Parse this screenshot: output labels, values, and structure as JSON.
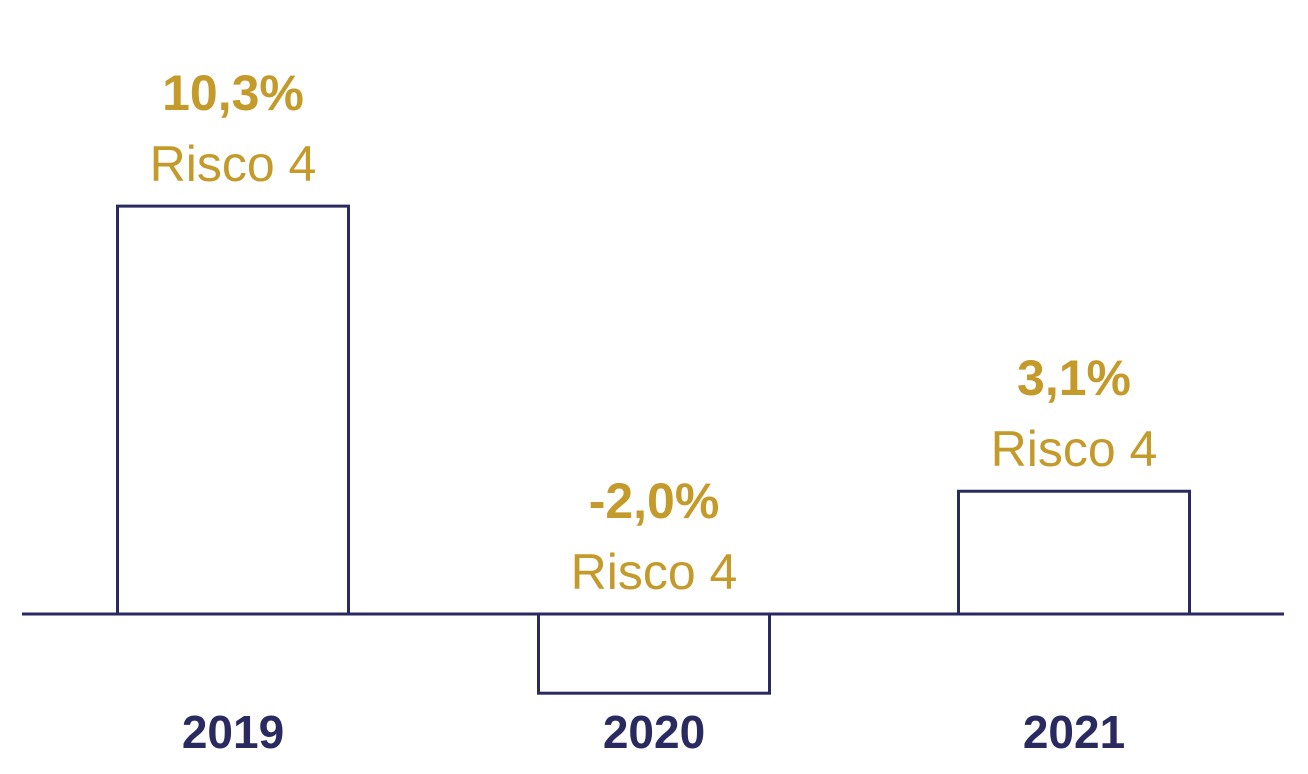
{
  "colors": {
    "bar_stroke": "#2b2a60",
    "label": "#c49a2a",
    "axis_text": "#2b2a60",
    "background": "#ffffff"
  },
  "chart_data": {
    "type": "bar",
    "title": "",
    "xlabel": "",
    "ylabel": "",
    "categories": [
      "2019",
      "2020",
      "2021"
    ],
    "values": [
      10.3,
      -2.0,
      3.1
    ],
    "value_labels": [
      "10,3%",
      "-2,0%",
      "3,1%"
    ],
    "risk_labels": [
      "Risco 4",
      "Risco 4",
      "Risco 4"
    ],
    "bar_style": "outline",
    "grid": false,
    "legend": "none"
  }
}
